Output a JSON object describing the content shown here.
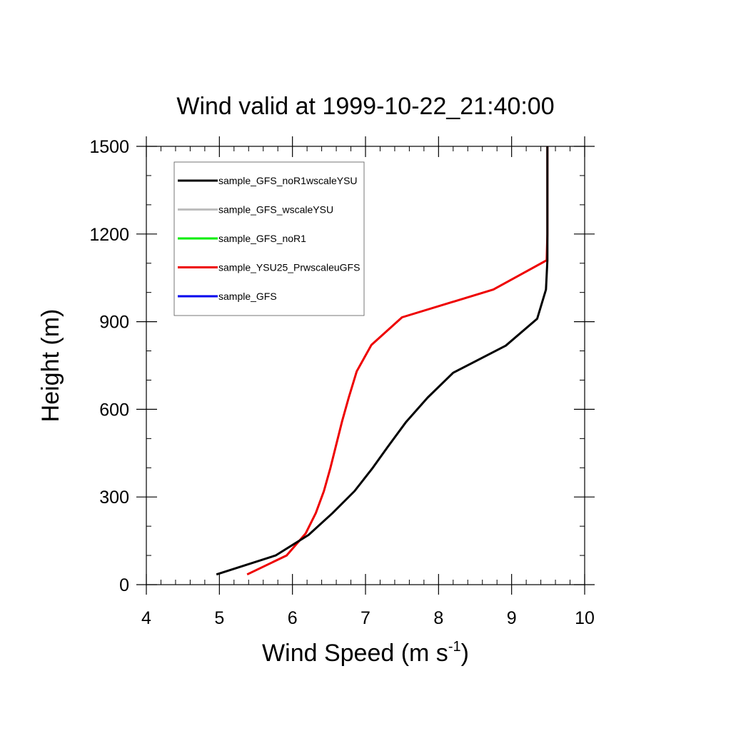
{
  "chart_data": {
    "type": "line",
    "title": "Wind valid at 1999-10-22_21:40:00",
    "xlabel": "Wind Speed (m s",
    "xlabel_superscript": "-1",
    "xlabel_suffix": ")",
    "ylabel": "Height (m)",
    "xlim": [
      4,
      10
    ],
    "ylim": [
      0,
      1500
    ],
    "xticks": [
      4,
      5,
      6,
      7,
      8,
      9,
      10
    ],
    "yticks": [
      0,
      300,
      600,
      900,
      1200,
      1500
    ],
    "xtick_labels": [
      "4",
      "5",
      "6",
      "7",
      "8",
      "9",
      "10"
    ],
    "ytick_labels": [
      "0",
      "300",
      "600",
      "900",
      "1200",
      "1500"
    ],
    "legend_position": "top-left",
    "grid": false,
    "series": [
      {
        "name": "sample_GFS_noR1wscaleYSU",
        "color": "#000000",
        "points": [
          [
            4.96,
            35
          ],
          [
            5.77,
            100
          ],
          [
            6.22,
            170
          ],
          [
            6.55,
            245
          ],
          [
            6.85,
            320
          ],
          [
            7.1,
            400
          ],
          [
            7.3,
            470
          ],
          [
            7.55,
            555
          ],
          [
            7.85,
            640
          ],
          [
            8.2,
            725
          ],
          [
            8.92,
            818
          ],
          [
            9.35,
            910
          ],
          [
            9.47,
            1010
          ],
          [
            9.49,
            1110
          ],
          [
            9.49,
            1200
          ],
          [
            9.49,
            1300
          ],
          [
            9.49,
            1400
          ],
          [
            9.49,
            1500
          ]
        ]
      },
      {
        "name": "sample_GFS_wscaleYSU",
        "color": "#bdbdbd",
        "points": []
      },
      {
        "name": "sample_GFS_noR1",
        "color": "#00ee00",
        "points": []
      },
      {
        "name": "sample_YSU25_PrwscaleuGFS",
        "color": "#ee0000",
        "points": [
          [
            5.38,
            35
          ],
          [
            5.92,
            100
          ],
          [
            6.18,
            175
          ],
          [
            6.32,
            245
          ],
          [
            6.43,
            320
          ],
          [
            6.52,
            400
          ],
          [
            6.6,
            480
          ],
          [
            6.68,
            560
          ],
          [
            6.77,
            640
          ],
          [
            6.88,
            730
          ],
          [
            7.08,
            820
          ],
          [
            7.5,
            915
          ],
          [
            8.75,
            1010
          ],
          [
            9.48,
            1110
          ],
          [
            9.49,
            1200
          ],
          [
            9.49,
            1300
          ],
          [
            9.49,
            1400
          ],
          [
            9.49,
            1500
          ]
        ]
      },
      {
        "name": "sample_GFS",
        "color": "#0000ee",
        "points": []
      }
    ]
  }
}
